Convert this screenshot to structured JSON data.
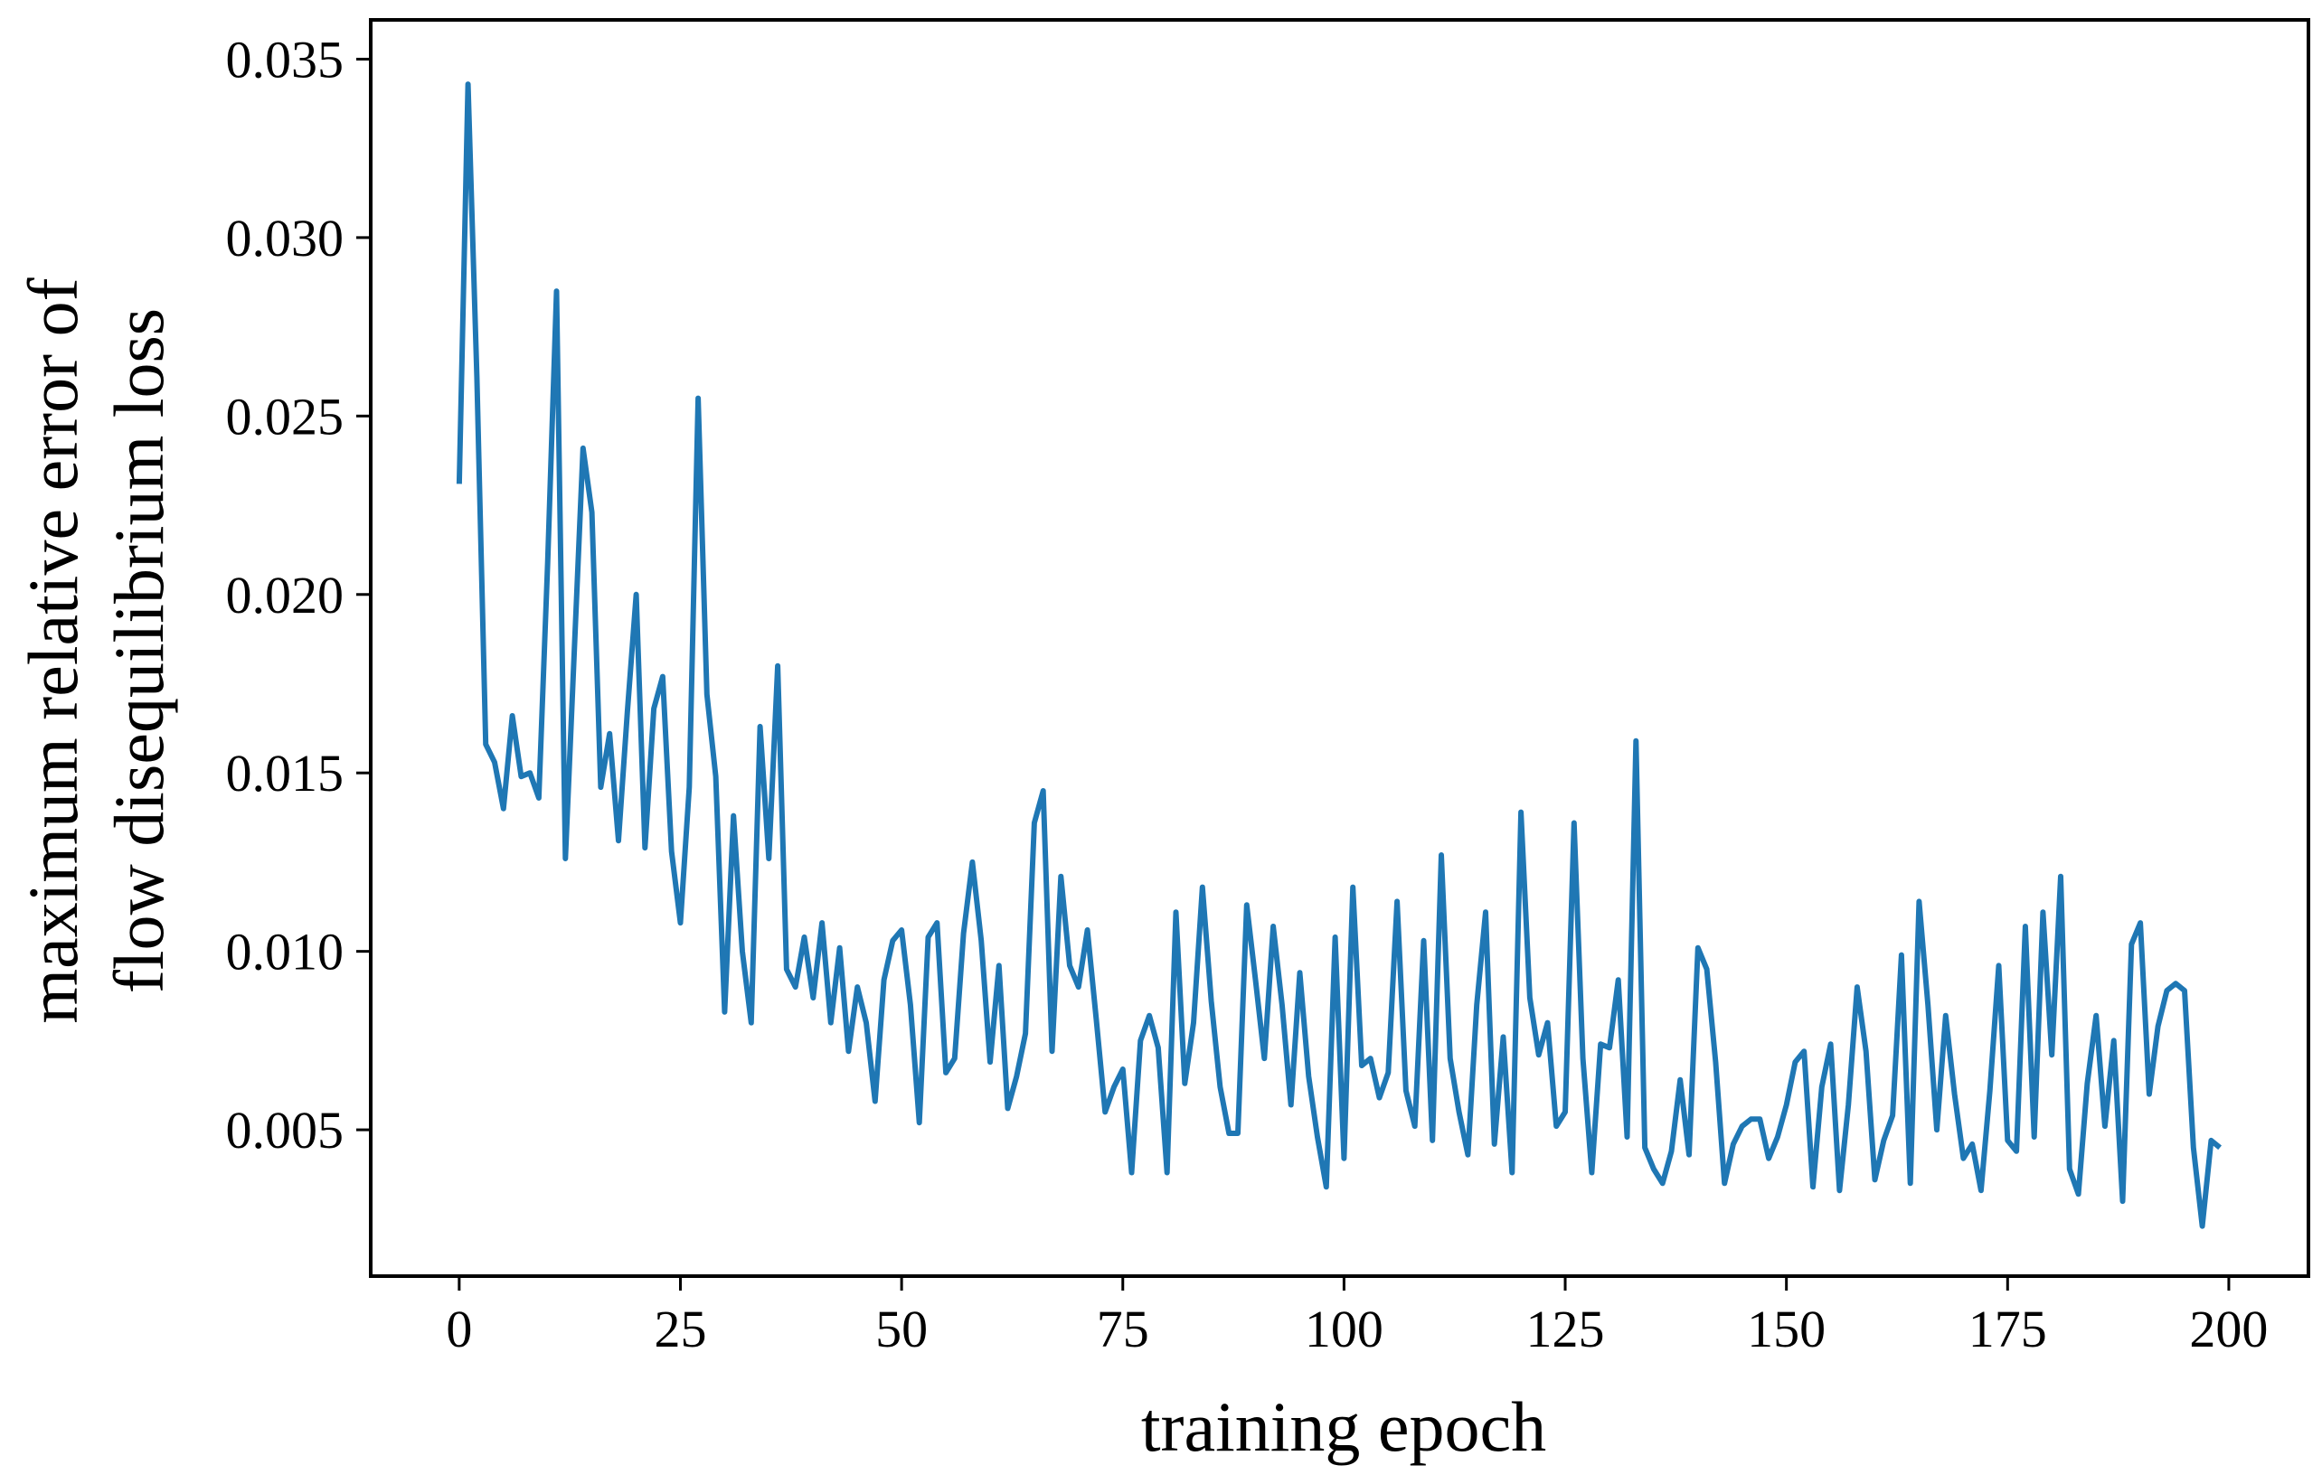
{
  "colors": {
    "series": "#1f77b4",
    "axes": "#000000",
    "background": "#ffffff"
  },
  "chart_data": {
    "type": "line",
    "title": "",
    "xlabel": "training epoch",
    "ylabel_lines": [
      "maximum relative error of",
      "flow disequilibrium loss"
    ],
    "xlim": [
      -10,
      209
    ],
    "ylim": [
      0.0009,
      0.0361
    ],
    "xticks": [
      0,
      25,
      50,
      75,
      100,
      125,
      150,
      175,
      200
    ],
    "xtick_labels": [
      "0",
      "25",
      "50",
      "75",
      "100",
      "125",
      "150",
      "175",
      "200"
    ],
    "yticks": [
      0.005,
      0.01,
      0.015,
      0.02,
      0.025,
      0.03,
      0.035
    ],
    "ytick_labels": [
      "0.005",
      "0.010",
      "0.015",
      "0.020",
      "0.025",
      "0.030",
      "0.035"
    ],
    "grid": false,
    "legend": "none",
    "series": [
      {
        "x": [
          0,
          1,
          2,
          3,
          4,
          5,
          6,
          7,
          8,
          9,
          10,
          11,
          12,
          13,
          14,
          15,
          16,
          17,
          18,
          19,
          20,
          21,
          22,
          23,
          24,
          25,
          26,
          27,
          28,
          29,
          30,
          31,
          32,
          33,
          34,
          35,
          36,
          37,
          38,
          39,
          40,
          41,
          42,
          43,
          44,
          45,
          46,
          47,
          48,
          49,
          50,
          51,
          52,
          53,
          54,
          55,
          56,
          57,
          58,
          59,
          60,
          61,
          62,
          63,
          64,
          65,
          66,
          67,
          68,
          69,
          70,
          71,
          72,
          73,
          74,
          75,
          76,
          77,
          78,
          79,
          80,
          81,
          82,
          83,
          84,
          85,
          86,
          87,
          88,
          89,
          90,
          91,
          92,
          93,
          94,
          95,
          96,
          97,
          98,
          99,
          100,
          101,
          102,
          103,
          104,
          105,
          106,
          107,
          108,
          109,
          110,
          111,
          112,
          113,
          114,
          115,
          116,
          117,
          118,
          119,
          120,
          121,
          122,
          123,
          124,
          125,
          126,
          127,
          128,
          129,
          130,
          131,
          132,
          133,
          134,
          135,
          136,
          137,
          138,
          139,
          140,
          141,
          142,
          143,
          144,
          145,
          146,
          147,
          148,
          149,
          150,
          151,
          152,
          153,
          154,
          155,
          156,
          157,
          158,
          159,
          160,
          161,
          162,
          163,
          164,
          165,
          166,
          167,
          168,
          169,
          170,
          171,
          172,
          173,
          174,
          175,
          176,
          177,
          178,
          179,
          180,
          181,
          182,
          183,
          184,
          185,
          186,
          187,
          188,
          189,
          190,
          191,
          192,
          193,
          194,
          195,
          196,
          197,
          198,
          199
        ],
        "values": [
          0.0231,
          0.0343,
          0.0261,
          0.0158,
          0.0153,
          0.014,
          0.0166,
          0.0149,
          0.015,
          0.0143,
          0.0209,
          0.0285,
          0.0126,
          0.0184,
          0.0241,
          0.0223,
          0.0146,
          0.0161,
          0.0131,
          0.0167,
          0.02,
          0.0129,
          0.0168,
          0.0177,
          0.0128,
          0.0108,
          0.0146,
          0.0255,
          0.0172,
          0.0149,
          0.0083,
          0.0138,
          0.01,
          0.008,
          0.0163,
          0.0126,
          0.018,
          0.0095,
          0.009,
          0.0104,
          0.0087,
          0.0108,
          0.008,
          0.0101,
          0.0072,
          0.009,
          0.008,
          0.0058,
          0.0092,
          0.0103,
          0.0106,
          0.0085,
          0.0052,
          0.0104,
          0.0108,
          0.0066,
          0.007,
          0.0105,
          0.0125,
          0.0103,
          0.0069,
          0.0096,
          0.0056,
          0.0065,
          0.0077,
          0.0136,
          0.0145,
          0.0072,
          0.0121,
          0.0096,
          0.009,
          0.0106,
          0.0081,
          0.0055,
          0.0062,
          0.0067,
          0.0038,
          0.0075,
          0.0082,
          0.0073,
          0.0038,
          0.0111,
          0.0063,
          0.008,
          0.0118,
          0.0086,
          0.0062,
          0.0049,
          0.0049,
          0.0113,
          0.0092,
          0.007,
          0.0107,
          0.0085,
          0.0057,
          0.0094,
          0.0065,
          0.0048,
          0.0034,
          0.0104,
          0.0042,
          0.0118,
          0.0068,
          0.007,
          0.0059,
          0.0066,
          0.0114,
          0.0061,
          0.0051,
          0.0103,
          0.0047,
          0.0127,
          0.007,
          0.0055,
          0.0043,
          0.0085,
          0.0111,
          0.0046,
          0.0076,
          0.0038,
          0.0139,
          0.0087,
          0.0071,
          0.008,
          0.0051,
          0.0055,
          0.0136,
          0.007,
          0.0038,
          0.0074,
          0.0073,
          0.0092,
          0.0048,
          0.0159,
          0.0045,
          0.0039,
          0.0035,
          0.0044,
          0.0064,
          0.0043,
          0.0101,
          0.0095,
          0.0069,
          0.0035,
          0.0046,
          0.0051,
          0.0053,
          0.0053,
          0.0042,
          0.0048,
          0.0057,
          0.0069,
          0.0072,
          0.0034,
          0.0062,
          0.0074,
          0.0033,
          0.0057,
          0.009,
          0.0072,
          0.0036,
          0.0047,
          0.0054,
          0.0099,
          0.0035,
          0.0114,
          0.0085,
          0.005,
          0.0082,
          0.006,
          0.0042,
          0.0046,
          0.0033,
          0.0061,
          0.0096,
          0.0047,
          0.0044,
          0.0107,
          0.0048,
          0.0111,
          0.0071,
          0.0121,
          0.0039,
          0.0032,
          0.0063,
          0.0082,
          0.0051,
          0.0075,
          0.003,
          0.0102,
          0.0108,
          0.006,
          0.0079,
          0.0089,
          0.0091,
          0.0089,
          0.0045,
          0.0023,
          0.0047,
          0.0045
        ]
      }
    ]
  }
}
